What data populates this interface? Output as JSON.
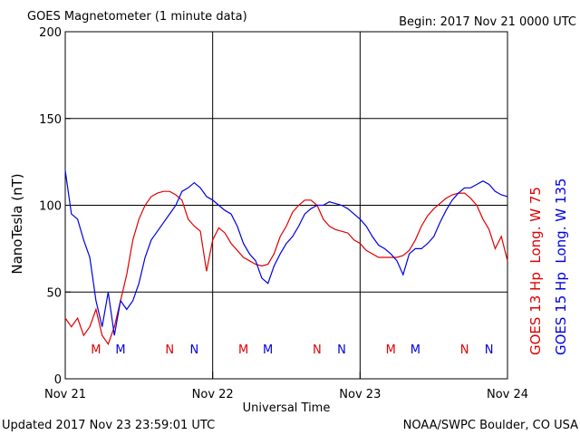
{
  "chart_data": {
    "type": "line",
    "title": "GOES Magnetometer (1 minute data)",
    "subtitle": "Begin:  2017 Nov 21 0000 UTC",
    "ylabel": "NanoTesla (nT)",
    "xlabel": "Universal Time",
    "footer_left": "Updated 2017 Nov 23 23:59:01 UTC",
    "footer_right": "NOAA/SWPC Boulder, CO USA",
    "x": [
      0,
      1,
      2,
      3,
      4,
      5,
      6,
      7,
      8,
      9,
      10,
      11,
      12,
      13,
      14,
      15,
      16,
      17,
      18,
      19,
      20,
      21,
      22,
      23,
      24,
      25,
      26,
      27,
      28,
      29,
      30,
      31,
      32,
      33,
      34,
      35,
      36,
      37,
      38,
      39,
      40,
      41,
      42,
      43,
      44,
      45,
      46,
      47,
      48,
      49,
      50,
      51,
      52,
      53,
      54,
      55,
      56,
      57,
      58,
      59,
      60,
      61,
      62,
      63,
      64,
      65,
      66,
      67,
      68,
      69,
      70,
      71,
      72
    ],
    "xlim": [
      0,
      72
    ],
    "xticks": [
      {
        "value": 0,
        "label": "Nov 21"
      },
      {
        "value": 24,
        "label": "Nov 22"
      },
      {
        "value": 48,
        "label": "Nov 23"
      },
      {
        "value": 72,
        "label": "Nov 24"
      }
    ],
    "ylim": [
      0,
      200
    ],
    "yticks": [
      0,
      50,
      100,
      150,
      200
    ],
    "grid": true,
    "series": [
      {
        "name": "GOES 13 Hp  Long. W 75",
        "color": "#e00000",
        "values": [
          35,
          30,
          35,
          25,
          30,
          40,
          25,
          20,
          30,
          45,
          60,
          80,
          92,
          100,
          105,
          107,
          108,
          108,
          106,
          103,
          92,
          88,
          85,
          62,
          80,
          87,
          84,
          78,
          74,
          70,
          68,
          66,
          65,
          66,
          72,
          82,
          88,
          96,
          100,
          103,
          103,
          100,
          92,
          88,
          86,
          85,
          84,
          80,
          78,
          74,
          72,
          70,
          70,
          70,
          70,
          71,
          74,
          80,
          88,
          94,
          98,
          101,
          104,
          106,
          107,
          107,
          104,
          100,
          92,
          86,
          75,
          82,
          68
        ]
      },
      {
        "name": "GOES 15 Hp  Long. W 135",
        "color": "#0000e0",
        "values": [
          120,
          95,
          92,
          80,
          70,
          45,
          30,
          50,
          25,
          45,
          40,
          45,
          55,
          70,
          80,
          85,
          90,
          95,
          100,
          108,
          110,
          113,
          110,
          105,
          103,
          100,
          97,
          95,
          88,
          78,
          72,
          68,
          58,
          55,
          65,
          72,
          78,
          82,
          88,
          95,
          98,
          100,
          100,
          102,
          101,
          100,
          98,
          95,
          92,
          88,
          82,
          77,
          75,
          72,
          68,
          60,
          72,
          75,
          75,
          78,
          82,
          90,
          97,
          103,
          107,
          110,
          110,
          112,
          114,
          112,
          108,
          106,
          105
        ]
      }
    ],
    "annotations": [
      {
        "text": "M",
        "x": 5,
        "color": "#e00000"
      },
      {
        "text": "M",
        "x": 9,
        "color": "#0000e0"
      },
      {
        "text": "N",
        "x": 17,
        "color": "#e00000"
      },
      {
        "text": "N",
        "x": 21,
        "color": "#0000e0"
      },
      {
        "text": "M",
        "x": 29,
        "color": "#e00000"
      },
      {
        "text": "M",
        "x": 33,
        "color": "#0000e0"
      },
      {
        "text": "N",
        "x": 41,
        "color": "#e00000"
      },
      {
        "text": "N",
        "x": 45,
        "color": "#0000e0"
      },
      {
        "text": "M",
        "x": 53,
        "color": "#e00000"
      },
      {
        "text": "M",
        "x": 57,
        "color": "#0000e0"
      },
      {
        "text": "N",
        "x": 65,
        "color": "#e00000"
      },
      {
        "text": "N",
        "x": 69,
        "color": "#0000e0"
      }
    ]
  }
}
